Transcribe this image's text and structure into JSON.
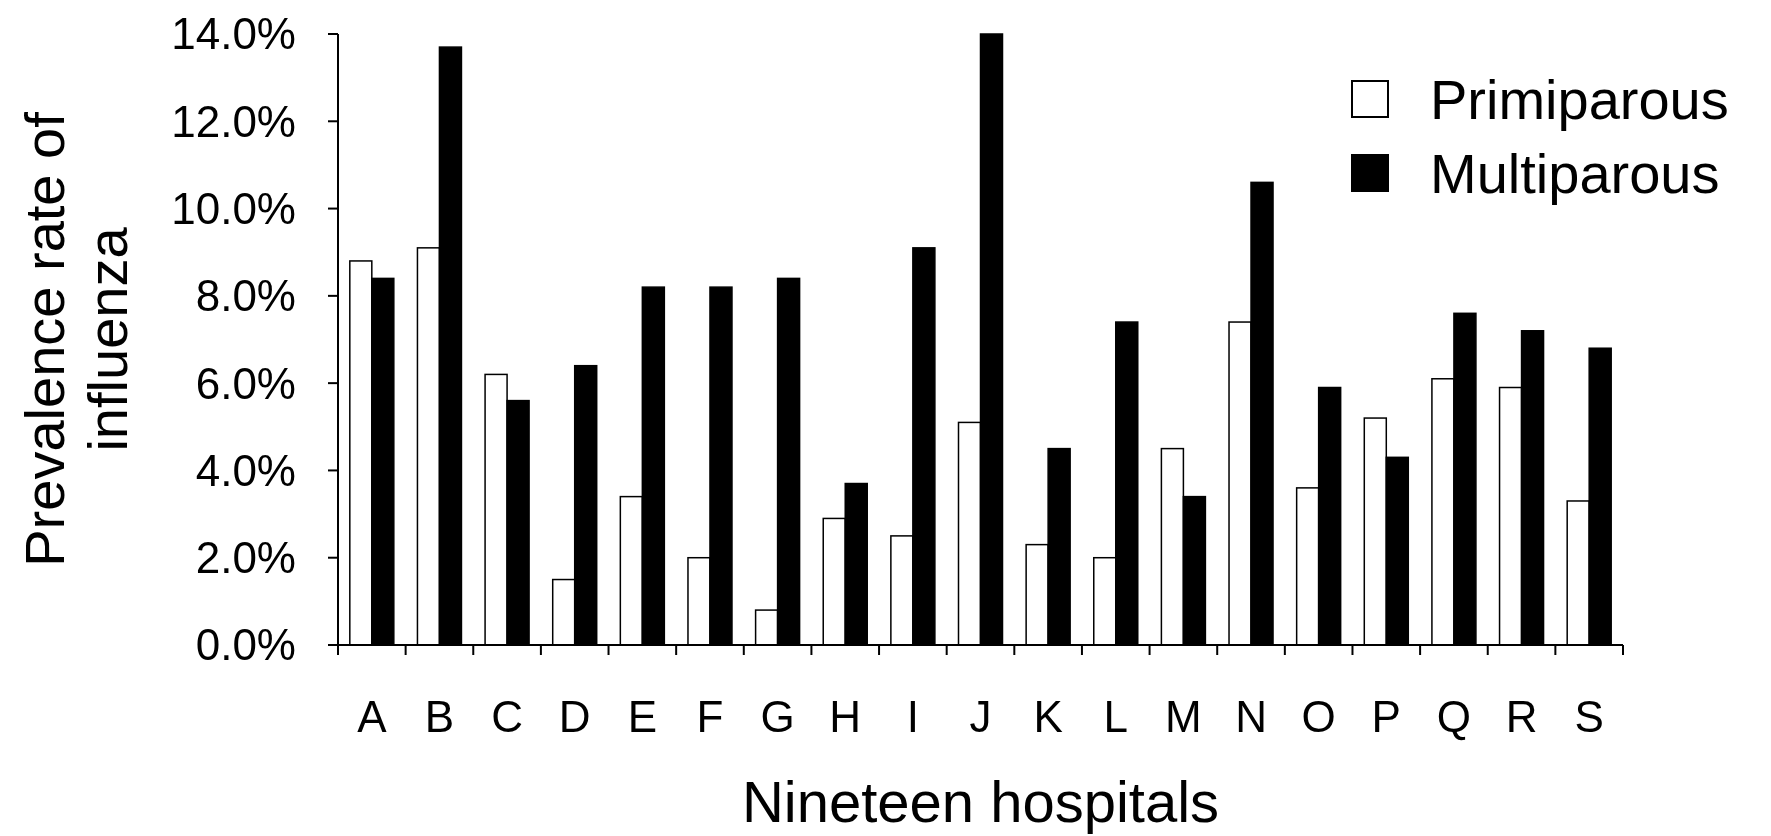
{
  "chart_data": {
    "type": "bar",
    "xlabel": "Nineteen hospitals",
    "ylabel": "Prevalence rate of influenza",
    "categories": [
      "A",
      "B",
      "C",
      "D",
      "E",
      "F",
      "G",
      "H",
      "I",
      "J",
      "K",
      "L",
      "M",
      "N",
      "O",
      "P",
      "Q",
      "R",
      "S"
    ],
    "series": [
      {
        "name": "Primiparous",
        "color": "#ffffff",
        "values": [
          8.8,
          9.1,
          6.2,
          1.5,
          3.4,
          2.0,
          0.8,
          2.9,
          2.5,
          5.1,
          2.3,
          2.0,
          4.5,
          7.4,
          3.6,
          5.2,
          6.1,
          5.9,
          3.3
        ]
      },
      {
        "name": "Multiparous",
        "color": "#000000",
        "values": [
          8.4,
          13.7,
          5.6,
          6.4,
          8.2,
          8.2,
          8.4,
          3.7,
          9.1,
          14.0,
          4.5,
          7.4,
          3.4,
          10.6,
          5.9,
          4.3,
          7.6,
          7.2,
          6.8
        ]
      }
    ],
    "ylim": [
      0,
      14
    ],
    "yticks": [
      {
        "value": 0,
        "label": "0.0%"
      },
      {
        "value": 2,
        "label": "2.0%"
      },
      {
        "value": 4,
        "label": "4.0%"
      },
      {
        "value": 6,
        "label": "6.0%"
      },
      {
        "value": 8,
        "label": "8.0%"
      },
      {
        "value": 10,
        "label": "10.0%"
      },
      {
        "value": 12,
        "label": "12.0%"
      },
      {
        "value": 14,
        "label": "14.0%"
      }
    ],
    "legend": "top right",
    "grid": false
  }
}
